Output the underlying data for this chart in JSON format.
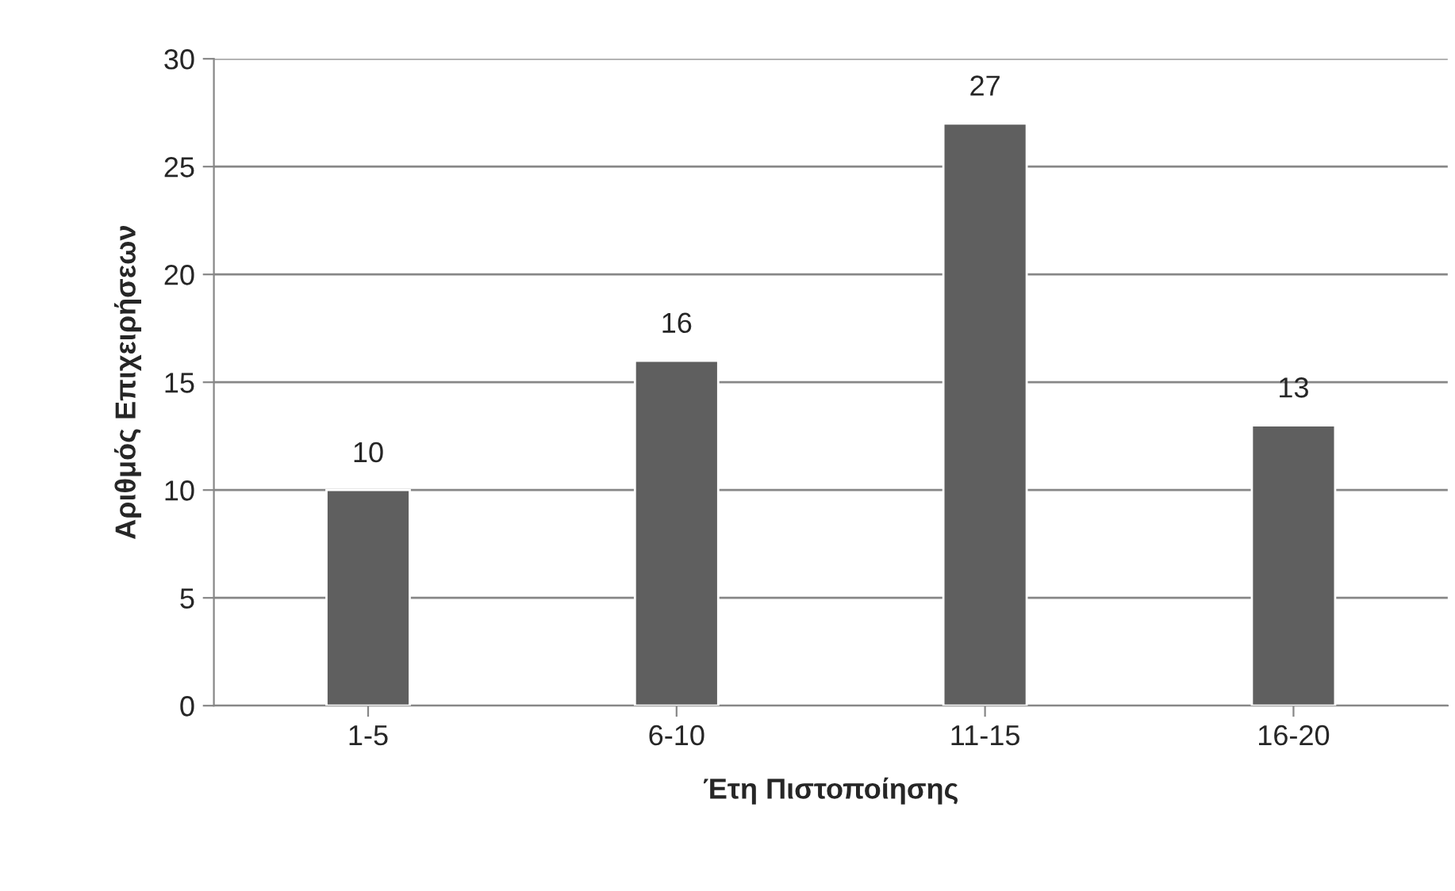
{
  "chart_data": {
    "type": "bar",
    "categories": [
      "1-5",
      "6-10",
      "11-15",
      "16-20"
    ],
    "values": [
      10,
      16,
      27,
      13
    ],
    "color": "#5f5f5f",
    "xlabel": "Έτη Πιστοποίησης",
    "ylabel": "Αριθμός Επιχειρήσεων",
    "ylim": [
      0,
      30
    ],
    "yticks": [
      0,
      5,
      10,
      15,
      20,
      25,
      30
    ],
    "grid": "y",
    "data_labels": true,
    "legend": false
  }
}
